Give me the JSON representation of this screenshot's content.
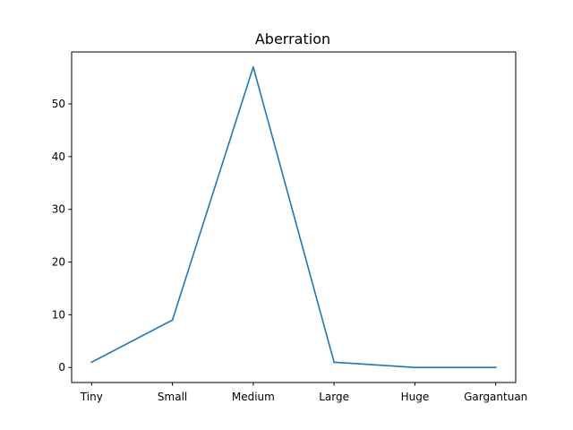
{
  "chart_data": {
    "type": "line",
    "title": "Aberration",
    "xlabel": "",
    "ylabel": "",
    "categories": [
      "Tiny",
      "Small",
      "Medium",
      "Large",
      "Huge",
      "Gargantuan"
    ],
    "series": [
      {
        "values": [
          1,
          9,
          57,
          1,
          0,
          0
        ],
        "color": "#1f77b4"
      }
    ],
    "ylim": [
      -2.85,
      59.85
    ],
    "yticks": [
      0,
      10,
      20,
      30,
      40,
      50
    ],
    "grid": false,
    "legend": "none"
  }
}
